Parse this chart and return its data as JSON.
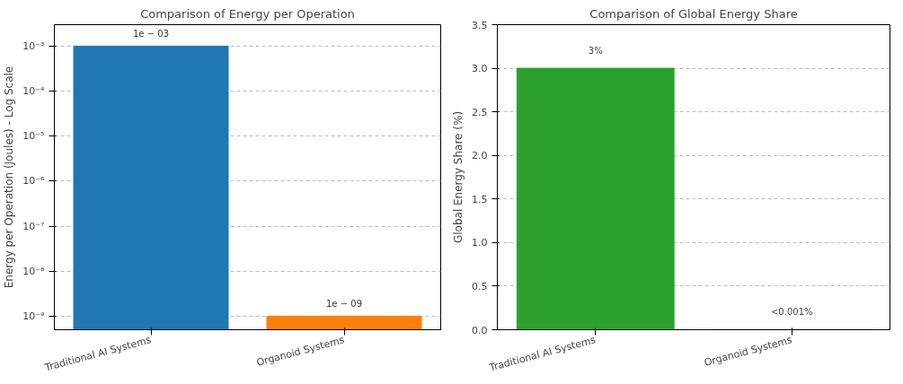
{
  "chart_data": [
    {
      "type": "bar",
      "title": "Comparison of Energy per Operation",
      "ylabel": "Energy per Operation (Joules) - Log Scale",
      "categories": [
        "Traditional AI Systems",
        "Organoid Systems"
      ],
      "values": [
        0.001,
        1e-09
      ],
      "colors": [
        "#1f77b4",
        "#ff7f0e"
      ],
      "annotations": [
        {
          "text": "1e − 03",
          "x": "Traditional AI Systems",
          "y": 0.001
        },
        {
          "text": "1e − 09",
          "x": "Organoid Systems",
          "y": 1e-09
        }
      ],
      "log": "y",
      "ylim": [
        5e-10,
        0.003
      ],
      "yticks": [
        {
          "value": 1e-09,
          "label": "10⁻⁹"
        },
        {
          "value": 1e-08,
          "label": "10⁻⁸"
        },
        {
          "value": 1e-07,
          "label": "10⁻⁷"
        },
        {
          "value": 1e-06,
          "label": "10⁻⁶"
        },
        {
          "value": 1e-05,
          "label": "10⁻⁵"
        },
        {
          "value": 0.0001,
          "label": "10⁻⁴"
        },
        {
          "value": 0.001,
          "label": "10⁻³"
        }
      ],
      "grid": "y"
    },
    {
      "type": "bar",
      "title": "Comparison of Global Energy Share",
      "ylabel": "Global Energy Share (%)",
      "categories": [
        "Traditional AI Systems",
        "Organoid Systems"
      ],
      "values": [
        3,
        0.001
      ],
      "colors": [
        "#2ca02c",
        "#d62728"
      ],
      "value_labels": [
        "3%",
        "<0.001%"
      ],
      "ylim": [
        0,
        3.5
      ],
      "yticks": [
        {
          "value": 0,
          "label": "0.0"
        },
        {
          "value": 0.5,
          "label": "0.5"
        },
        {
          "value": 1,
          "label": "1.0"
        },
        {
          "value": 1.5,
          "label": "1.5"
        },
        {
          "value": 2,
          "label": "2.0"
        },
        {
          "value": 2.5,
          "label": "2.5"
        },
        {
          "value": 3,
          "label": "3.0"
        },
        {
          "value": 3.5,
          "label": "3.5"
        }
      ],
      "grid": "y"
    }
  ]
}
